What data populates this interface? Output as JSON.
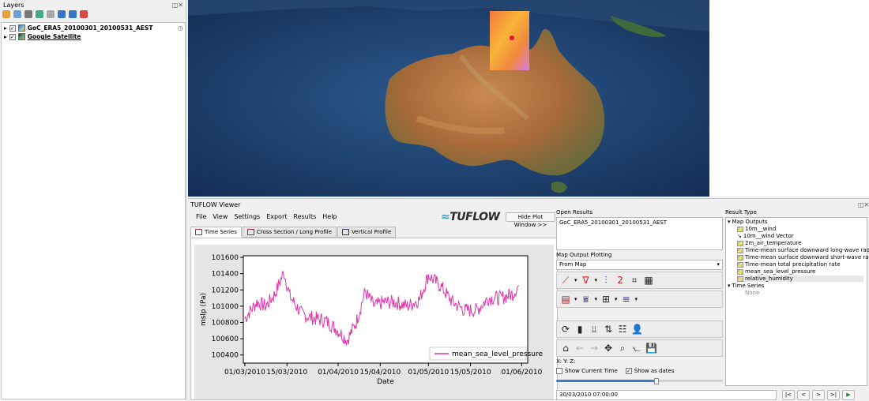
{
  "layers_panel": {
    "title": "Layers",
    "layers": [
      {
        "name": "GoC_ERA5_20100301_20100531_AEST",
        "checked": true,
        "icon": "mesh-layer-icon",
        "has_clock": true
      },
      {
        "name": "Google Satellite",
        "checked": true,
        "icon": "raster-layer-icon"
      }
    ]
  },
  "tuflow": {
    "title": "TUFLOW Viewer",
    "menus": [
      "File",
      "View",
      "Settings",
      "Export",
      "Results",
      "Help"
    ],
    "logo": "TUFLOW",
    "hide_plot_label": "Hide Plot Window >>",
    "tabs": [
      {
        "label": "Time Series",
        "active": true
      },
      {
        "label": "Cross Section / Long Profile",
        "active": false
      },
      {
        "label": "Vertical Profile",
        "active": false
      }
    ],
    "open_results_label": "Open Results",
    "open_results": [
      "GoC_ERA5_20100301_20100531_AEST"
    ],
    "map_output_plotting_label": "Map Output Plotting",
    "from_map": "From Map",
    "xyz_label": "X: Y: Z:",
    "show_current_time": {
      "label": "Show Current Time",
      "checked": false
    },
    "show_as_dates": {
      "label": "Show as dates",
      "checked": true
    },
    "time_slider_fraction": 0.6,
    "current_time": "30/03/2010 07:00:00",
    "time_controls": [
      "|<",
      "<",
      ">",
      ">|",
      "▶"
    ],
    "result_type_label": "Result Type",
    "map_outputs_label": "Map Outputs",
    "map_outputs": [
      "10m__wind",
      "10m__wind Vector",
      "2m_air_temperature",
      "Time-mean surface downward long-wave radiat",
      "Time-mean surface downward short-wave radia",
      "Time-mean total precipitation rate",
      "mean_sea_level_pressure",
      "relative_humidity"
    ],
    "time_series_label": "Time Series",
    "time_series_none": "None"
  },
  "chart_data": {
    "type": "line",
    "xlabel": "Date",
    "ylabel": "mslp (Pa)",
    "x_ticks": [
      "01/03/2010",
      "15/03/2010",
      "01/04/2010",
      "15/04/2010",
      "01/05/2010",
      "15/05/2010",
      "01/06/2010"
    ],
    "y_ticks": [
      "100400",
      "100600",
      "100800",
      "101000",
      "101200",
      "101400",
      "101600"
    ],
    "ylim": [
      100300,
      101620
    ],
    "legend": "mean_sea_level_pressure",
    "legend_position": "bottom-right",
    "color": "#e034a8",
    "series": [
      {
        "name": "mean_sea_level_pressure",
        "x": [
          "01/03/2010",
          "05/03/2010",
          "08/03/2010",
          "11/03/2010",
          "14/03/2010",
          "16/03/2010",
          "20/03/2010",
          "24/03/2010",
          "28/03/2010",
          "01/04/2010",
          "04/04/2010",
          "07/04/2010",
          "10/04/2010",
          "13/04/2010",
          "16/04/2010",
          "20/04/2010",
          "24/04/2010",
          "28/04/2010",
          "01/05/2010",
          "05/05/2010",
          "09/05/2010",
          "13/05/2010",
          "17/05/2010",
          "21/05/2010",
          "25/05/2010",
          "29/05/2010",
          "31/05/2010"
        ],
        "y": [
          100850,
          101050,
          101000,
          101150,
          101420,
          101120,
          100900,
          100850,
          100820,
          100700,
          100580,
          100800,
          101180,
          101000,
          101050,
          101050,
          101000,
          101080,
          101380,
          101250,
          101050,
          100950,
          100950,
          101100,
          101100,
          101150,
          101250
        ]
      }
    ]
  }
}
